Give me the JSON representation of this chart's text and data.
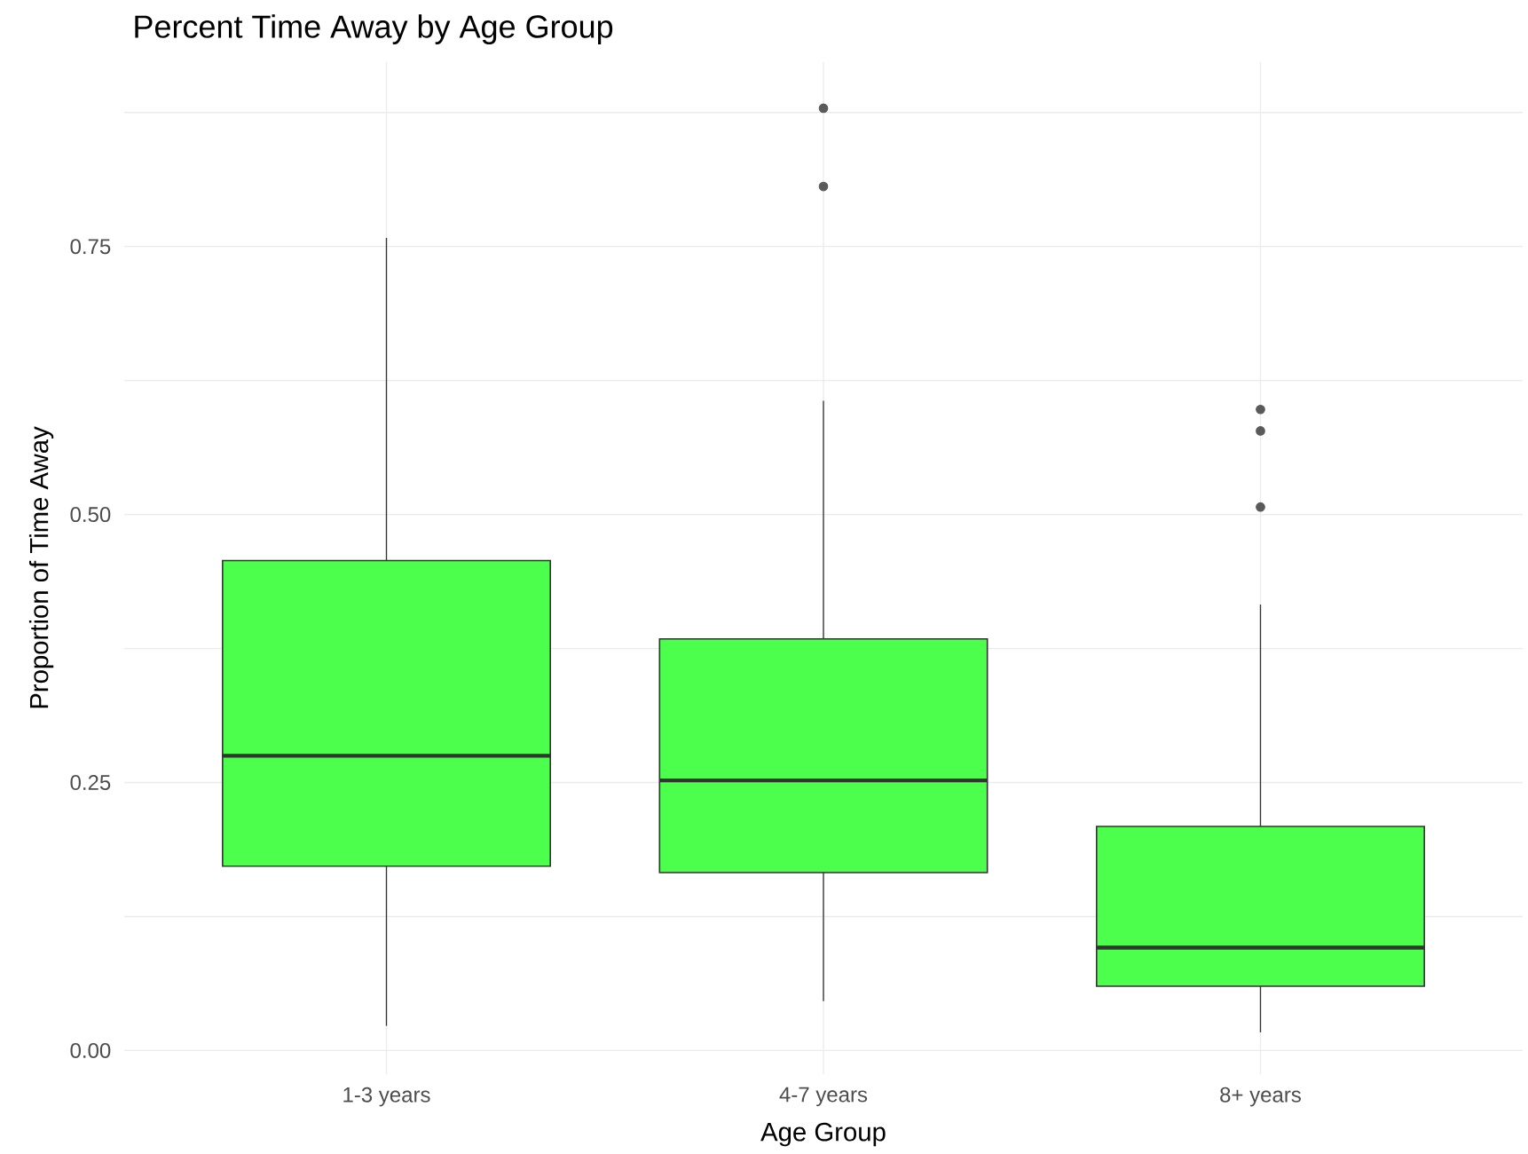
{
  "chart_data": {
    "type": "box",
    "title": "Percent Time Away by Age Group",
    "xlabel": "Age Group",
    "ylabel": "Proportion of Time Away",
    "categories": [
      "1-3 years",
      "4-7 years",
      "8+ years"
    ],
    "color": "#4dff4d",
    "boxes": [
      {
        "low": 0.023,
        "q1": 0.172,
        "median": 0.275,
        "q3": 0.457,
        "high": 0.758
      },
      {
        "low": 0.046,
        "q1": 0.166,
        "median": 0.252,
        "q3": 0.384,
        "high": 0.606,
        "outliers": [
          0.879,
          0.806
        ]
      },
      {
        "low": 0.017,
        "q1": 0.06,
        "median": 0.096,
        "q3": 0.209,
        "high": 0.416,
        "outliers": [
          0.598,
          0.578,
          0.507
        ]
      }
    ],
    "ylim": [
      -0.022,
      0.922
    ],
    "yticks": [
      {
        "value": 0,
        "label": "0.00"
      },
      {
        "value": 0.125,
        "label": null
      },
      {
        "value": 0.25,
        "label": "0.25"
      },
      {
        "value": 0.375,
        "label": null
      },
      {
        "value": 0.5,
        "label": "0.50"
      },
      {
        "value": 0.625,
        "label": null
      },
      {
        "value": 0.75,
        "label": "0.75"
      },
      {
        "value": 0.875,
        "label": null
      }
    ],
    "grid": true
  }
}
